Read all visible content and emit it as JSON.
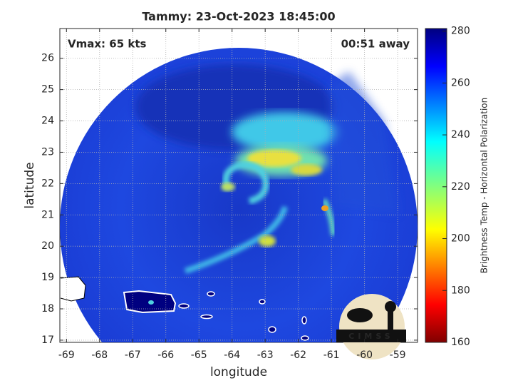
{
  "chart_data": {
    "type": "image",
    "title": "Tammy: 23-Oct-2023 18:45:00",
    "annotations": [
      "Vmax: 65 kts",
      "00:51 away"
    ],
    "xlabel": "longitude",
    "ylabel": "latitude",
    "xlim": [
      -69.2,
      -58.4
    ],
    "xticks": [
      -69,
      -68,
      -67,
      -66,
      -65,
      -64,
      -63,
      -62,
      -61,
      -60,
      -59
    ],
    "ylim": [
      16.93,
      26.95
    ],
    "yticks": [
      17,
      18,
      19,
      20,
      21,
      22,
      23,
      24,
      25,
      26
    ],
    "grid": true,
    "colorbar": {
      "label": "Brightness Temp - Horizontal Polarization",
      "lim": [
        160,
        281
      ],
      "ticks": [
        160,
        180,
        200,
        220,
        240,
        260,
        280
      ]
    }
  },
  "logo": "CIMSS"
}
